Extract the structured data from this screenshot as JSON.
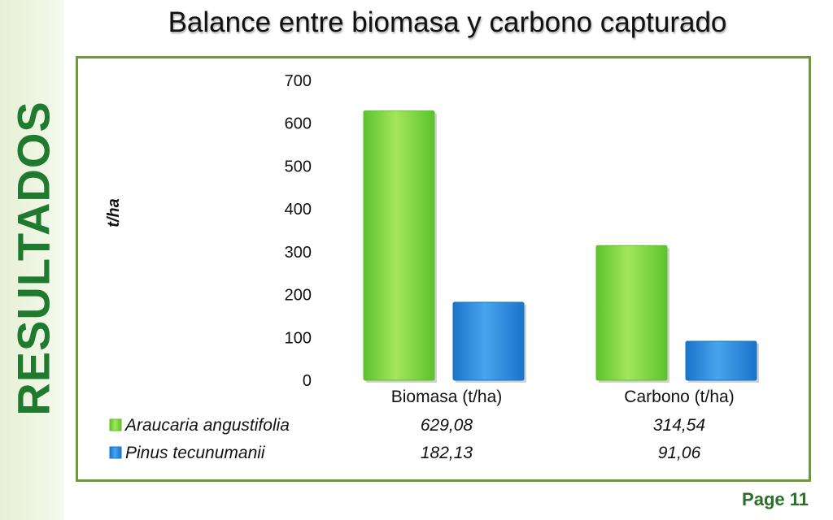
{
  "slide": {
    "side_label": "RESULTADOS",
    "title": "Balance entre biomasa y carbono capturado",
    "page": "Page 11"
  },
  "chart_data": {
    "type": "bar",
    "ylabel": "t/ha",
    "ylim": [
      0,
      700
    ],
    "yticks": [
      "0",
      "100",
      "200",
      "300",
      "400",
      "500",
      "600",
      "700"
    ],
    "grid": false,
    "legend": "data-table-below",
    "categories": [
      "Biomasa (t/ha)",
      "Carbono (t/ha)"
    ],
    "series": [
      {
        "name": "Araucaria angustifolia",
        "values": [
          629.08,
          314.54
        ],
        "labels": [
          "629,08",
          "314,54"
        ],
        "color": "#5cc22d",
        "color_light": "#a4e65b"
      },
      {
        "name": "Pinus tecunumanii",
        "values": [
          182.13,
          91.06
        ],
        "labels": [
          "182,13",
          "91,06"
        ],
        "color": "#1a74c9",
        "color_light": "#46a5ee"
      }
    ]
  }
}
